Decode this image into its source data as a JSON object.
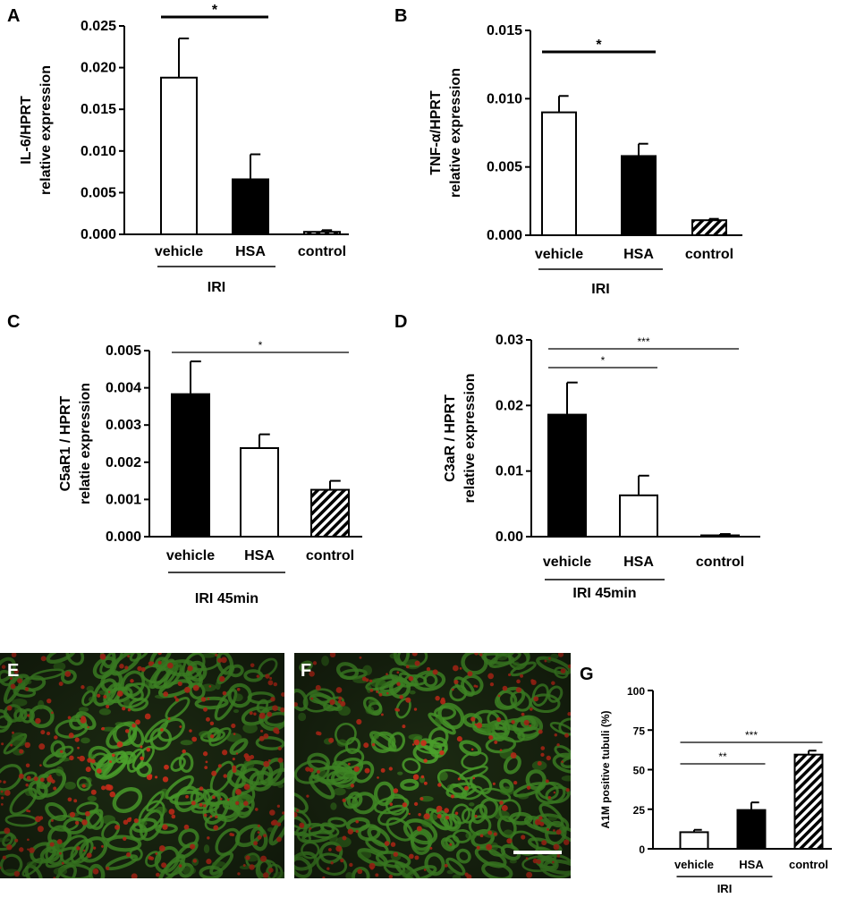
{
  "panels": {
    "A": "A",
    "B": "B",
    "C": "C",
    "D": "D",
    "E": "E",
    "F": "F",
    "G": "G"
  },
  "colors": {
    "micro_background": "#1c2a12",
    "tubule_green": "#4fa82e",
    "stain_red": "#d8301c",
    "bar_black": "#000000",
    "bar_white": "#ffffff"
  },
  "chart_data": [
    {
      "id": "A",
      "type": "bar",
      "ylabel": [
        "IL-6/HPRT",
        "relative expression"
      ],
      "ylim": [
        0,
        0.025
      ],
      "yticks": [
        "0.000",
        "0.005",
        "0.010",
        "0.015",
        "0.020",
        "0.025"
      ],
      "categories": [
        "vehicle",
        "HSA",
        "control"
      ],
      "values": [
        0.0188,
        0.0066,
        0.0003
      ],
      "errors": [
        0.0047,
        0.003,
        0.0002
      ],
      "fills": [
        "white",
        "black",
        "hatch"
      ],
      "group_label": "IRI",
      "group_span": [
        0,
        1
      ],
      "significance": [
        {
          "from": 0,
          "to": 1,
          "label": "*"
        }
      ]
    },
    {
      "id": "B",
      "type": "bar",
      "ylabel": [
        "TNF-α/HPRT",
        "relative expression"
      ],
      "ylim": [
        0,
        0.015
      ],
      "yticks": [
        "0.000",
        "0.005",
        "0.010",
        "0.015"
      ],
      "categories": [
        "vehicle",
        "HSA",
        "control"
      ],
      "values": [
        0.009,
        0.0058,
        0.0011
      ],
      "errors": [
        0.0012,
        0.0009,
        0.0001
      ],
      "fills": [
        "white",
        "black",
        "hatch"
      ],
      "group_label": "IRI",
      "group_span": [
        0,
        1
      ],
      "significance": [
        {
          "from": 0,
          "to": 1,
          "label": "*"
        }
      ]
    },
    {
      "id": "C",
      "type": "bar",
      "ylabel": [
        "C5aR1 / HPRT",
        "relatie expression"
      ],
      "ylim": [
        0,
        0.005
      ],
      "yticks": [
        "0.000",
        "0.001",
        "0.002",
        "0.003",
        "0.004",
        "0.005"
      ],
      "categories": [
        "vehicle",
        "HSA",
        "control"
      ],
      "values": [
        0.00383,
        0.00238,
        0.00126
      ],
      "errors": [
        0.00088,
        0.00037,
        0.00024
      ],
      "fills": [
        "black",
        "white",
        "hatch"
      ],
      "group_label": "IRI 45min",
      "group_span": [
        0,
        1
      ],
      "significance": [
        {
          "from": 0,
          "to": 2,
          "label": "*"
        }
      ]
    },
    {
      "id": "D",
      "type": "bar",
      "ylabel": [
        "C3aR / HPRT",
        "relative expression"
      ],
      "ylim": [
        0,
        0.03
      ],
      "yticks": [
        "0.00",
        "0.01",
        "0.02",
        "0.03"
      ],
      "categories": [
        "vehicle",
        "HSA",
        "control"
      ],
      "values": [
        0.0186,
        0.0063,
        0.0002
      ],
      "errors": [
        0.0049,
        0.003,
        0.0002
      ],
      "fills": [
        "black",
        "white",
        "white"
      ],
      "group_label": "IRI 45min",
      "group_span": [
        0,
        1
      ],
      "significance": [
        {
          "from": 0,
          "to": 2,
          "label": "***"
        },
        {
          "from": 0,
          "to": 1,
          "label": "*"
        }
      ]
    },
    {
      "id": "G",
      "type": "bar",
      "ylabel": [
        "A1M positive tubuli (%)"
      ],
      "ylim": [
        0,
        100
      ],
      "yticks": [
        "0",
        "25",
        "50",
        "75",
        "100"
      ],
      "categories": [
        "vehicle",
        "HSA",
        "control"
      ],
      "values": [
        10.5,
        24.5,
        59.5
      ],
      "errors": [
        1.5,
        4.8,
        2.5
      ],
      "fills": [
        "white",
        "black",
        "hatch"
      ],
      "group_label": "IRI",
      "group_span": [
        0,
        1
      ],
      "significance": [
        {
          "from": 0,
          "to": 2,
          "label": "***"
        },
        {
          "from": 0,
          "to": 1,
          "label": "**"
        }
      ]
    }
  ]
}
